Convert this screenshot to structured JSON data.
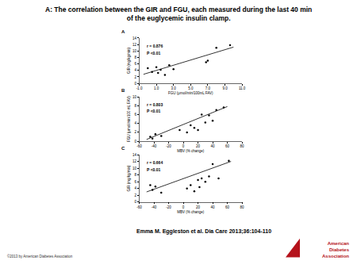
{
  "title": "A: The correlation between the GIR and FGU, each measured during the last 40 min of the euglycemic insulin clamp.",
  "citation": "Emma M. Eggleston et al. Dia Care 2013;36:104-110",
  "copyright": "©2013 by American Diabetes Association",
  "logo": "American Diabetes Association",
  "chart_data": [
    {
      "type": "scatter",
      "label": "A",
      "xlabel": "FGU (μmol/min/100mL FAV)",
      "ylabel": "GIR (mg/kg/min)",
      "annotations": [
        "r = 0.876",
        "P <0.01"
      ],
      "xlim": [
        -1,
        11
      ],
      "xticks": [
        {
          "value": -1,
          "label": "-1.0"
        },
        {
          "value": 1,
          "label": "1.0"
        },
        {
          "value": 3,
          "label": "3.0"
        },
        {
          "value": 5,
          "label": "5.0"
        },
        {
          "value": 7,
          "label": "7.0"
        },
        {
          "value": 9,
          "label": "9.0"
        },
        {
          "value": 11,
          "label": "11.0"
        }
      ],
      "ylim": [
        0,
        14
      ],
      "yticks": [
        0,
        2,
        4,
        6,
        8,
        10,
        12,
        14
      ],
      "color": "#000000",
      "series": [
        {
          "type": "scatter",
          "marker": "circle",
          "x": [
            0.0,
            0.5,
            1.0,
            1.2,
            1.5,
            2.0,
            2.5,
            3.0,
            6.8,
            7.0,
            8.0,
            9.6
          ],
          "values": [
            4.7,
            3.5,
            5.0,
            3.2,
            4.2,
            2.6,
            5.6,
            4.4,
            6.5,
            7.0,
            11.0,
            11.8
          ]
        },
        {
          "type": "line",
          "x": [
            -0.5,
            10.0
          ],
          "values": [
            2.8,
            11.2
          ]
        }
      ]
    },
    {
      "type": "scatter",
      "label": "B",
      "xlabel": "MBV (% change)",
      "ylabel": "FGU (μmol/min/100 mL FAV)",
      "annotations": [
        "r = 0.803",
        "P <0.01"
      ],
      "xlim": [
        -60,
        80
      ],
      "xticks": [
        -60,
        -40,
        -20,
        0,
        20,
        40,
        60,
        80
      ],
      "ylim": [
        0,
        10
      ],
      "yticks": [
        0,
        2,
        4,
        6,
        8,
        10
      ],
      "color": "#000000",
      "series": [
        {
          "type": "scatter",
          "marker": "circle",
          "x": [
            -45,
            -42,
            -38,
            -30,
            -5,
            5,
            10,
            15,
            20,
            25,
            30,
            35,
            40,
            45,
            55
          ],
          "values": [
            1.0,
            0.6,
            1.6,
            1.2,
            2.5,
            2.0,
            3.6,
            3.0,
            2.5,
            6.0,
            4.2,
            5.8,
            4.6,
            7.0,
            7.6
          ]
        },
        {
          "type": "line",
          "x": [
            -50,
            60
          ],
          "values": [
            0.4,
            7.8
          ]
        }
      ]
    },
    {
      "type": "scatter",
      "label": "C",
      "xlabel": "MBV (% change)",
      "ylabel": "GIR (mg/kg/min)",
      "annotations": [
        "r = 0.664",
        "P <0.01"
      ],
      "xlim": [
        -60,
        80
      ],
      "xticks": [
        -60,
        -40,
        -20,
        0,
        20,
        40,
        60,
        80
      ],
      "ylim": [
        0,
        14
      ],
      "yticks": [
        0,
        2,
        4,
        6,
        8,
        10,
        12,
        14
      ],
      "color": "#000000",
      "series": [
        {
          "type": "scatter",
          "marker": "circle",
          "x": [
            -45,
            -42,
            -38,
            -30,
            5,
            10,
            15,
            20,
            22,
            25,
            30,
            35,
            40,
            48,
            62
          ],
          "values": [
            5.0,
            3.6,
            4.6,
            2.8,
            4.0,
            5.0,
            3.2,
            6.5,
            4.4,
            7.0,
            6.0,
            7.6,
            11.2,
            7.0,
            12.2
          ]
        },
        {
          "type": "line",
          "x": [
            -50,
            65
          ],
          "values": [
            3.0,
            12.0
          ]
        }
      ]
    }
  ]
}
